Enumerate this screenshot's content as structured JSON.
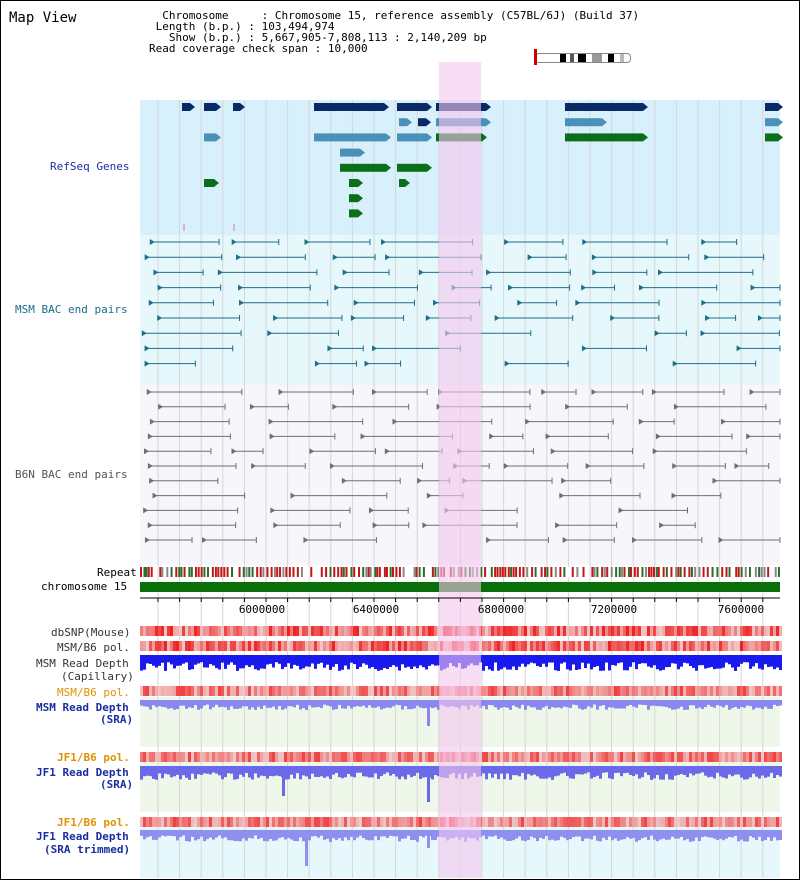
{
  "view": {
    "title": "Map View"
  },
  "info": {
    "chromosome_key": "Chromosome",
    "chromosome_value": "Chromosome 15, reference assembly (C57BL/6J) (Build 37)",
    "length_key": "Length (b.p.)",
    "length_value": "103,494,974",
    "show_key": "Show (b.p.)",
    "show_value": "5,667,905-7,808,113 : 2,140,209 bp",
    "span_key": "Read coverage check span",
    "span_value": "10,000"
  },
  "tracks": {
    "refseq": "RefSeq Genes",
    "msm_bac": "MSM BAC end pairs",
    "b6n_bac": "B6N BAC end pairs",
    "repeat": "Repeat",
    "chromosome": "chromosome 15",
    "dbsnp": "dbSNP(Mouse)",
    "msm_b6_pol": "MSM/B6 pol.",
    "msm_depth_cap_1": "MSM Read Depth",
    "msm_depth_cap_2": "(Capillary)",
    "msm_b6_pol_2": "MSM/B6 pol.",
    "msm_depth_sra_1": "MSM Read Depth",
    "msm_depth_sra_2": "(SRA)",
    "jf1_b6_pol": "JF1/B6 pol.",
    "jf1_depth_sra_1": "JF1 Read Depth",
    "jf1_depth_sra_2": "(SRA)",
    "jf1_b6_pol_2": "JF1/B6 pol.",
    "jf1_depth_trim_1": "JF1 Read Depth",
    "jf1_depth_trim_2": "(SRA trimmed)"
  },
  "axis": {
    "ticks": [
      "6000000",
      "6400000",
      "6800000",
      "7200000",
      "7600000"
    ]
  },
  "colors": {
    "gene_dark": "#0a2a66",
    "gene_mid": "#4a90b8",
    "gene_green": "#0a6e1a",
    "msm_line": "#1f6e8a",
    "b6n_line": "#707070",
    "highlight": "#f5c6ee",
    "label_blue": "#1a2ea0",
    "label_orange": "#e09000",
    "label_teal": "#1a6e8a"
  }
}
